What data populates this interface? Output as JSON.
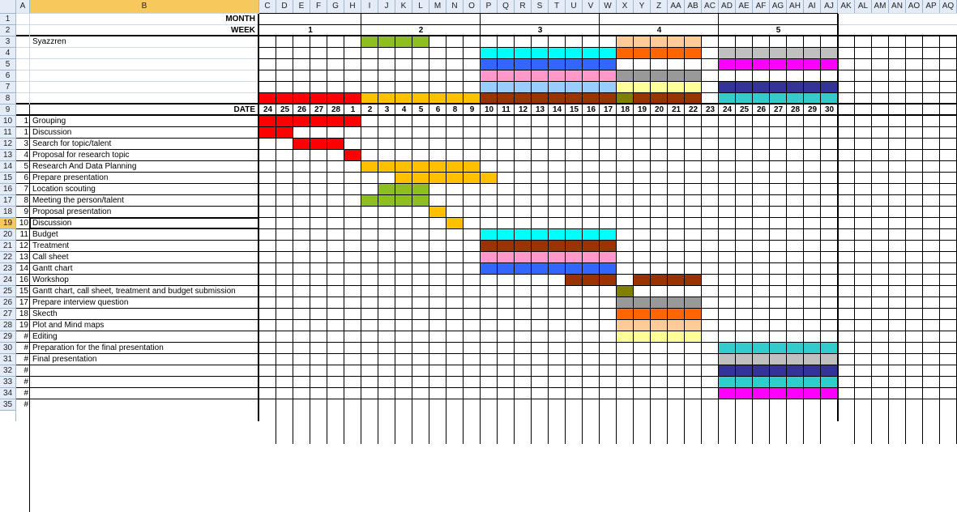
{
  "sheet": {
    "column_headers": [
      "A",
      "B",
      "C",
      "D",
      "E",
      "F",
      "G",
      "H",
      "I",
      "J",
      "K",
      "L",
      "M",
      "N",
      "O",
      "P",
      "Q",
      "R",
      "S",
      "T",
      "U",
      "V",
      "W",
      "X",
      "Y",
      "Z",
      "AA",
      "AB",
      "AC",
      "AD",
      "AE",
      "AF",
      "AG",
      "AH",
      "AI",
      "AJ",
      "AK",
      "AL",
      "AM",
      "AN",
      "AO",
      "AP",
      "AQ"
    ],
    "row_headers": [
      "1",
      "2",
      "3",
      "4",
      "5",
      "6",
      "7",
      "8",
      "9",
      "10",
      "11",
      "12",
      "13",
      "14",
      "15",
      "16",
      "17",
      "18",
      "19",
      "20",
      "21",
      "22",
      "23",
      "24",
      "25",
      "26",
      "27",
      "28",
      "29",
      "30",
      "31",
      "32",
      "33",
      "34",
      "35"
    ],
    "selected_row": "19",
    "selected_col": "B",
    "month_label": "MONTH",
    "week_label": "WEEK",
    "date_label": "DATE",
    "weeks": [
      {
        "label": "1",
        "start": 0,
        "end": 5
      },
      {
        "label": "2",
        "start": 6,
        "end": 12
      },
      {
        "label": "3",
        "start": 13,
        "end": 19
      },
      {
        "label": "4",
        "start": 20,
        "end": 26
      },
      {
        "label": "5",
        "start": 27,
        "end": 33
      }
    ],
    "dates": [
      "24",
      "25",
      "26",
      "27",
      "28",
      "1",
      "2",
      "3",
      "4",
      "5",
      "6",
      "8",
      "9",
      "10",
      "11",
      "12",
      "13",
      "14",
      "15",
      "16",
      "17",
      "18",
      "19",
      "20",
      "21",
      "22",
      "23",
      "24",
      "25",
      "26",
      "27",
      "28",
      "29",
      "30"
    ],
    "row3_label": "Syazzren",
    "tasks": [
      {
        "num": "1",
        "name": "Grouping"
      },
      {
        "num": "1",
        "name": "Discussion"
      },
      {
        "num": "3",
        "name": "Search for topic/talent"
      },
      {
        "num": "4",
        "name": "Proposal for research topic"
      },
      {
        "num": "5",
        "name": "Research And Data Planning"
      },
      {
        "num": "6",
        "name": "Prepare presentation"
      },
      {
        "num": "7",
        "name": "Location scouting"
      },
      {
        "num": "8",
        "name": "Meeting the person/talent"
      },
      {
        "num": "9",
        "name": "Proposal presentation"
      },
      {
        "num": "10",
        "name": "Discussion"
      },
      {
        "num": "11",
        "name": "Budget"
      },
      {
        "num": "12",
        "name": "Treatment"
      },
      {
        "num": "13",
        "name": "Call sheet"
      },
      {
        "num": "14",
        "name": "Gantt chart"
      },
      {
        "num": "16",
        "name": "Workshop"
      },
      {
        "num": "15",
        "name": "Gantt chart, call sheet, treatment and budget submission"
      },
      {
        "num": "17",
        "name": "Prepare interview question"
      },
      {
        "num": "18",
        "name": "Skecth"
      },
      {
        "num": "19",
        "name": "Plot and Mind maps"
      },
      {
        "num": "#",
        "name": "Editing"
      },
      {
        "num": "#",
        "name": "Preparation for the final presentation"
      },
      {
        "num": "#",
        "name": "Final presentation"
      },
      {
        "num": "#",
        "name": ""
      },
      {
        "num": "#",
        "name": ""
      },
      {
        "num": "#",
        "name": ""
      },
      {
        "num": "#",
        "name": ""
      }
    ],
    "colors": {
      "red": "#ff0000",
      "gold": "#ffc000",
      "lime": "#8cbf1f",
      "cyan": "#00ffff",
      "blue": "#3366ff",
      "pink": "#ff99cc",
      "ltblue": "#99ccff",
      "brown": "#993300",
      "olive": "#808000",
      "peach": "#ffcc99",
      "orange": "#ff6600",
      "gray": "#999999",
      "ltyellow": "#ffff99",
      "magenta": "#ff00ff",
      "navy": "#333399",
      "teal": "#33cccc",
      "silver": "#c0c0c0"
    },
    "bars": [
      {
        "row": 3,
        "from": 6,
        "to": 9,
        "color": "lime"
      },
      {
        "row": 3,
        "from": 21,
        "to": 25,
        "color": "peach"
      },
      {
        "row": 4,
        "from": 13,
        "to": 20,
        "color": "cyan"
      },
      {
        "row": 4,
        "from": 21,
        "to": 25,
        "color": "orange"
      },
      {
        "row": 4,
        "from": 27,
        "to": 33,
        "color": "silver"
      },
      {
        "row": 5,
        "from": 13,
        "to": 20,
        "color": "blue"
      },
      {
        "row": 5,
        "from": 27,
        "to": 33,
        "color": "magenta"
      },
      {
        "row": 6,
        "from": 13,
        "to": 20,
        "color": "pink"
      },
      {
        "row": 6,
        "from": 21,
        "to": 25,
        "color": "gray"
      },
      {
        "row": 7,
        "from": 13,
        "to": 20,
        "color": "ltblue"
      },
      {
        "row": 7,
        "from": 21,
        "to": 25,
        "color": "ltyellow"
      },
      {
        "row": 7,
        "from": 27,
        "to": 33,
        "color": "navy"
      },
      {
        "row": 8,
        "from": 0,
        "to": 5,
        "color": "red"
      },
      {
        "row": 8,
        "from": 6,
        "to": 12,
        "color": "gold"
      },
      {
        "row": 8,
        "from": 13,
        "to": 20,
        "color": "brown"
      },
      {
        "row": 8,
        "from": 21,
        "to": 21,
        "color": "olive"
      },
      {
        "row": 8,
        "from": 22,
        "to": 25,
        "color": "brown"
      },
      {
        "row": 8,
        "from": 27,
        "to": 33,
        "color": "teal"
      },
      {
        "row": 10,
        "from": 0,
        "to": 5,
        "color": "red"
      },
      {
        "row": 11,
        "from": 0,
        "to": 1,
        "color": "red"
      },
      {
        "row": 12,
        "from": 2,
        "to": 4,
        "color": "red"
      },
      {
        "row": 13,
        "from": 5,
        "to": 5,
        "color": "red"
      },
      {
        "row": 14,
        "from": 6,
        "to": 12,
        "color": "gold"
      },
      {
        "row": 15,
        "from": 8,
        "to": 13,
        "color": "gold"
      },
      {
        "row": 16,
        "from": 7,
        "to": 9,
        "color": "lime"
      },
      {
        "row": 17,
        "from": 6,
        "to": 7,
        "color": "lime"
      },
      {
        "row": 17,
        "from": 8,
        "to": 9,
        "color": "lime"
      },
      {
        "row": 18,
        "from": 10,
        "to": 10,
        "color": "gold"
      },
      {
        "row": 19,
        "from": 11,
        "to": 11,
        "color": "gold"
      },
      {
        "row": 20,
        "from": 13,
        "to": 20,
        "color": "cyan"
      },
      {
        "row": 21,
        "from": 13,
        "to": 20,
        "color": "brown"
      },
      {
        "row": 22,
        "from": 13,
        "to": 20,
        "color": "pink"
      },
      {
        "row": 23,
        "from": 13,
        "to": 20,
        "color": "blue"
      },
      {
        "row": 24,
        "from": 18,
        "to": 20,
        "color": "brown"
      },
      {
        "row": 24,
        "from": 22,
        "to": 25,
        "color": "brown"
      },
      {
        "row": 25,
        "from": 21,
        "to": 21,
        "color": "olive"
      },
      {
        "row": 26,
        "from": 21,
        "to": 25,
        "color": "gray"
      },
      {
        "row": 27,
        "from": 21,
        "to": 25,
        "color": "orange"
      },
      {
        "row": 28,
        "from": 21,
        "to": 25,
        "color": "peach"
      },
      {
        "row": 29,
        "from": 21,
        "to": 25,
        "color": "ltyellow"
      },
      {
        "row": 30,
        "from": 27,
        "to": 33,
        "color": "teal"
      },
      {
        "row": 31,
        "from": 27,
        "to": 33,
        "color": "silver"
      },
      {
        "row": 32,
        "from": 27,
        "to": 33,
        "color": "navy"
      },
      {
        "row": 33,
        "from": 27,
        "to": 33,
        "color": "teal"
      },
      {
        "row": 34,
        "from": 27,
        "to": 33,
        "color": "magenta"
      }
    ]
  }
}
